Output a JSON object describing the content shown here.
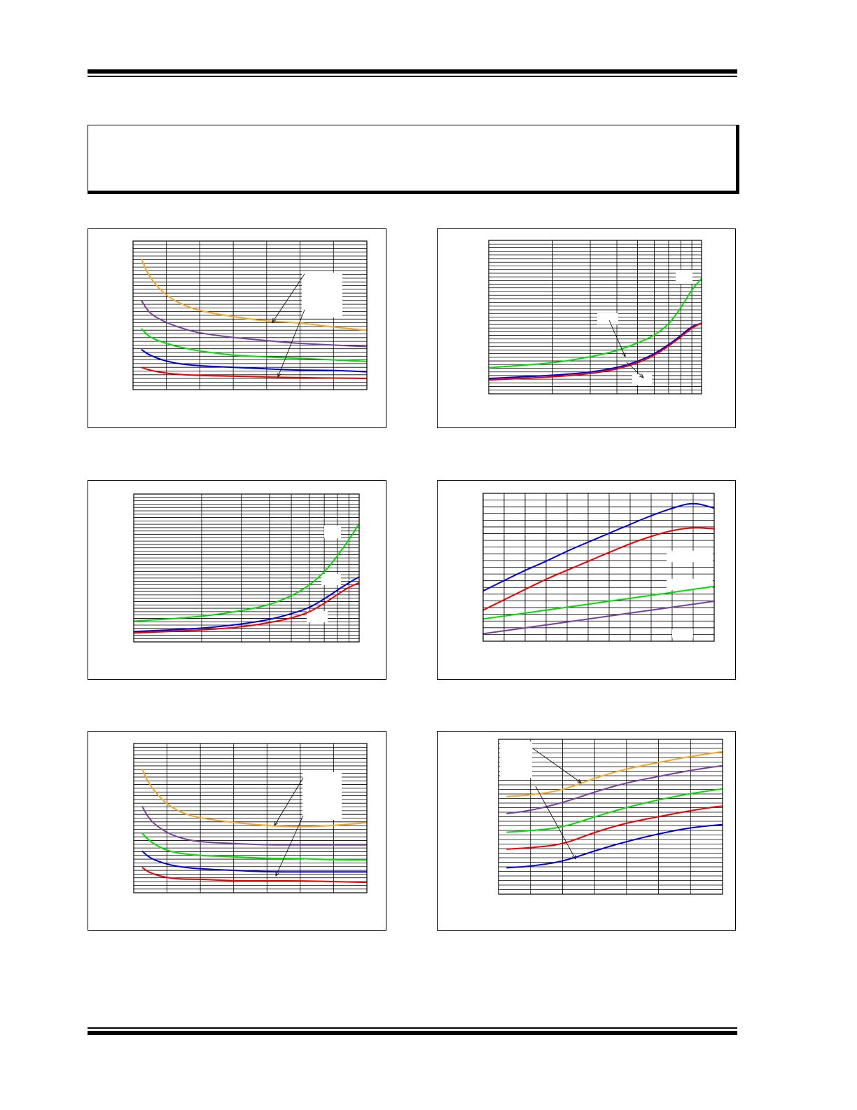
{
  "page": {
    "notice_text": ""
  },
  "chart_data": [
    {
      "type": "line",
      "title": "",
      "x_scale": "linear",
      "y_scale": "linear",
      "xlim": [
        0,
        7
      ],
      "ylim": [
        0,
        100
      ],
      "grid": "on",
      "x": [
        0.25,
        0.5,
        1,
        1.5,
        2,
        3,
        4,
        5,
        6,
        7
      ],
      "series": [
        {
          "color": "#f5a623",
          "values": [
            88,
            75,
            63,
            57,
            53,
            49,
            46,
            45,
            42,
            40
          ]
        },
        {
          "color": "#7b3fa0",
          "values": [
            60,
            51,
            45,
            41,
            38,
            35,
            33,
            31,
            30,
            29
          ]
        },
        {
          "color": "#00dd00",
          "values": [
            41,
            35,
            31,
            28,
            26,
            23,
            22,
            21,
            20,
            19
          ]
        },
        {
          "color": "#0000dd",
          "values": [
            27,
            23,
            19,
            17,
            16,
            15,
            14,
            13,
            13,
            12
          ]
        },
        {
          "color": "#ee0000",
          "values": [
            15,
            13,
            11,
            10,
            9.5,
            9,
            8.5,
            8,
            7.8,
            7.5
          ]
        }
      ],
      "legend_boxes": 1
    },
    {
      "type": "line",
      "title": "",
      "x_scale": "log",
      "y_scale": "linear",
      "xlim": [
        1,
        10
      ],
      "ylim": [
        0,
        100
      ],
      "grid": "on",
      "x": [
        1,
        2,
        3,
        4,
        5,
        6,
        7,
        8,
        9,
        10
      ],
      "series": [
        {
          "color": "#00dd00",
          "values": [
            17,
            20,
            24,
            28,
            33,
            38,
            45,
            56,
            68,
            75
          ]
        },
        {
          "color": "#0000dd",
          "values": [
            10,
            12,
            14,
            17,
            21,
            26,
            32,
            38,
            44,
            46
          ]
        },
        {
          "color": "#ee0000",
          "values": [
            9,
            11,
            13,
            16,
            20,
            25,
            31,
            37,
            43,
            46
          ]
        }
      ],
      "legend_boxes": 3
    },
    {
      "type": "line",
      "title": "",
      "x_scale": "log",
      "y_scale": "linear",
      "xlim": [
        1,
        10
      ],
      "ylim": [
        0,
        100
      ],
      "grid": "on",
      "x": [
        1,
        2,
        3,
        4,
        5,
        6,
        7,
        8,
        9,
        10
      ],
      "series": [
        {
          "color": "#00dd00",
          "values": [
            14,
            17,
            21,
            25,
            31,
            38,
            47,
            58,
            69,
            80
          ]
        },
        {
          "color": "#0000dd",
          "values": [
            7,
            9,
            12,
            15,
            19,
            23,
            29,
            35,
            40,
            44
          ]
        },
        {
          "color": "#ee0000",
          "values": [
            6,
            8,
            10,
            13,
            16,
            20,
            26,
            32,
            37,
            40
          ]
        }
      ],
      "legend_boxes": 3
    },
    {
      "type": "line",
      "title": "",
      "x_scale": "linear",
      "y_scale": "linear",
      "xlim": [
        0,
        11
      ],
      "ylim": [
        0,
        100
      ],
      "grid": "on",
      "x": [
        0,
        1,
        2,
        3,
        4,
        5,
        6,
        7,
        8,
        9,
        10,
        11
      ],
      "series": [
        {
          "color": "#0000dd",
          "values": [
            34,
            41,
            48,
            54,
            61,
            67,
            73,
            79,
            85,
            90,
            94,
            90
          ]
        },
        {
          "color": "#ee0000",
          "values": [
            21,
            28,
            35,
            42,
            48,
            54,
            60,
            66,
            71,
            75,
            77,
            76
          ]
        },
        {
          "color": "#00dd00",
          "values": [
            15,
            17,
            19,
            21,
            23,
            25,
            27,
            29,
            31,
            33,
            35,
            37
          ]
        },
        {
          "color": "#7b3fa0",
          "values": [
            5,
            7,
            9,
            11,
            13,
            15,
            17,
            19,
            21,
            23,
            25,
            27
          ]
        }
      ],
      "legend_boxes": 3
    },
    {
      "type": "line",
      "title": "",
      "x_scale": "linear",
      "y_scale": "linear",
      "xlim": [
        0,
        7
      ],
      "ylim": [
        0,
        100
      ],
      "grid": "on",
      "x": [
        0.25,
        0.5,
        1,
        1.5,
        2,
        3,
        4,
        5,
        6,
        7
      ],
      "series": [
        {
          "color": "#f5a623",
          "values": [
            83,
            71,
            59,
            53,
            50,
            47,
            45,
            44,
            45,
            47
          ]
        },
        {
          "color": "#7b3fa0",
          "values": [
            58,
            48,
            40,
            36,
            34,
            33,
            32,
            32,
            32,
            32
          ]
        },
        {
          "color": "#00dd00",
          "values": [
            40,
            34,
            28,
            26,
            25,
            24,
            23,
            23,
            22,
            22
          ]
        },
        {
          "color": "#0000dd",
          "values": [
            28,
            23,
            19,
            17,
            16,
            15,
            14,
            14,
            14,
            14
          ]
        },
        {
          "color": "#ee0000",
          "values": [
            17,
            13,
            10,
            9,
            9,
            8,
            8,
            8,
            7.5,
            7
          ]
        }
      ],
      "legend_boxes": 1
    },
    {
      "type": "line",
      "title": "",
      "x_scale": "linear",
      "y_scale": "linear",
      "xlim": [
        0,
        7
      ],
      "ylim": [
        0,
        100
      ],
      "grid": "on",
      "x": [
        0.25,
        1,
        2,
        3,
        4,
        5,
        6,
        7
      ],
      "series": [
        {
          "color": "#f5a623",
          "values": [
            63,
            64,
            67,
            75,
            81,
            85,
            89,
            92
          ]
        },
        {
          "color": "#7b3fa0",
          "values": [
            52,
            54,
            59,
            66,
            72,
            76,
            80,
            83
          ]
        },
        {
          "color": "#00dd00",
          "values": [
            40,
            41,
            43,
            50,
            56,
            61,
            65,
            68
          ]
        },
        {
          "color": "#ee0000",
          "values": [
            29,
            30,
            32,
            40,
            46,
            50,
            54,
            57
          ]
        },
        {
          "color": "#0000dd",
          "values": [
            17,
            18,
            21,
            28,
            34,
            39,
            43,
            45
          ]
        }
      ],
      "legend_boxes": 1
    }
  ]
}
